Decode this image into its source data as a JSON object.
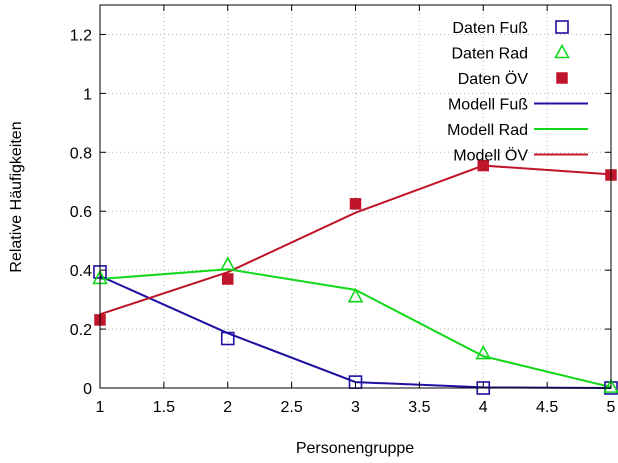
{
  "chart_data": {
    "type": "line",
    "xlabel": "Personengruppe",
    "ylabel": "Relative Häufigkeiten",
    "xlim": [
      1,
      5
    ],
    "ylim": [
      0,
      1.3
    ],
    "x_ticks": [
      1,
      1.5,
      2,
      2.5,
      3,
      3.5,
      4,
      4.5,
      5
    ],
    "x_tick_labels": [
      "1",
      "1.5",
      "2",
      "2.5",
      "3",
      "3.5",
      "4",
      "4.5",
      "5"
    ],
    "y_ticks": [
      0,
      0.2,
      0.4,
      0.6,
      0.8,
      1,
      1.2
    ],
    "y_tick_labels": [
      "0",
      "0.2",
      "0.4",
      "0.6",
      "0.8",
      "1",
      "1.2"
    ],
    "grid": true,
    "legend_position": "top-right",
    "series": [
      {
        "name": "Daten Fuß",
        "kind": "points",
        "marker": "open-square",
        "color": "#1e10a0",
        "x": [
          1,
          2,
          3,
          4,
          5
        ],
        "values": [
          0.394,
          0.168,
          0.02,
          0.0,
          0.0
        ]
      },
      {
        "name": "Daten Rad",
        "kind": "points",
        "marker": "open-triangle",
        "color": "#11d81a",
        "x": [
          1,
          2,
          3,
          4,
          5
        ],
        "values": [
          0.372,
          0.418,
          0.31,
          0.117,
          0.003
        ]
      },
      {
        "name": "Daten ÖV",
        "kind": "points",
        "marker": "filled-square",
        "color": "#c0142a",
        "x": [
          1,
          2,
          3,
          4,
          5
        ],
        "values": [
          0.231,
          0.37,
          0.625,
          0.755,
          0.723
        ]
      },
      {
        "name": "Modell Fuß",
        "kind": "line",
        "color": "#1e10a0",
        "x": [
          1,
          2,
          3,
          4,
          5
        ],
        "values": [
          0.38,
          0.186,
          0.02,
          0.002,
          0.0
        ]
      },
      {
        "name": "Modell Rad",
        "kind": "line",
        "color": "#11d81a",
        "x": [
          1,
          2,
          3,
          4,
          5
        ],
        "values": [
          0.37,
          0.403,
          0.333,
          0.108,
          0.003
        ]
      },
      {
        "name": "Modell ÖV",
        "kind": "line",
        "color": "#c0142a",
        "x": [
          1,
          2,
          3,
          4,
          5
        ],
        "values": [
          0.25,
          0.393,
          0.595,
          0.755,
          0.725
        ]
      }
    ]
  }
}
